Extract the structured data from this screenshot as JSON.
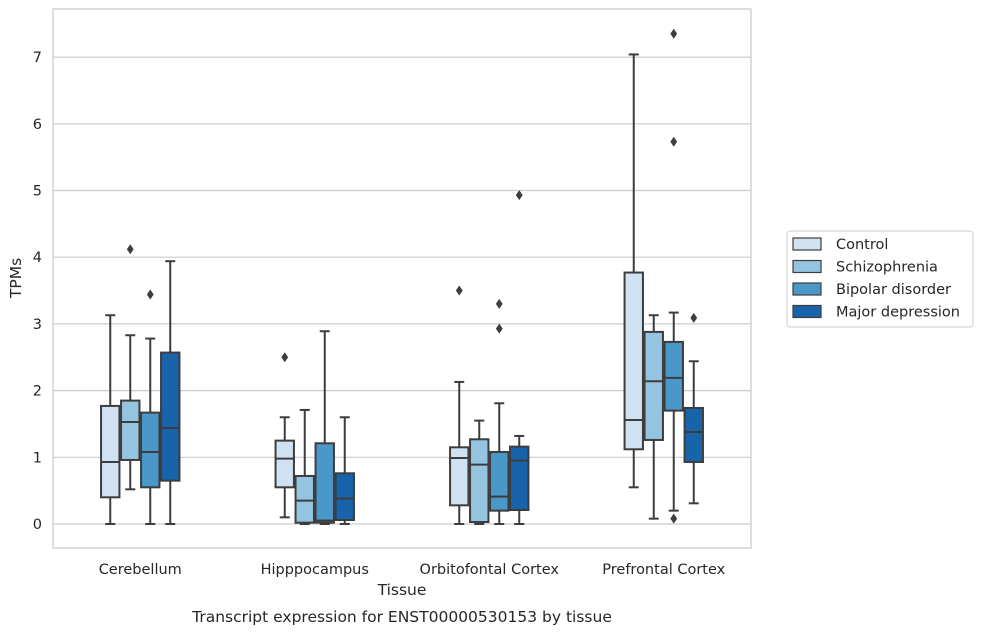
{
  "caption": "Transcript expression for ENST00000530153 by tissue",
  "chart_data": {
    "type": "boxplot",
    "title": "",
    "xlabel": "Tissue",
    "ylabel": "TPMs",
    "ylim": [
      -0.35,
      7.7
    ],
    "yticks": [
      0,
      1,
      2,
      3,
      4,
      5,
      6,
      7
    ],
    "grid": "horizontal",
    "legend_position": "right",
    "categories": [
      "Cerebellum",
      "Hipppocampus",
      "Orbitofontal Cortex",
      "Prefrontal Cortex"
    ],
    "series": [
      {
        "name": "Control",
        "color": "#d0e1f2",
        "boxes": [
          {
            "whislo": 0.0,
            "q1": 0.4,
            "med": 0.93,
            "q3": 1.77,
            "whishi": 3.13,
            "fliers": []
          },
          {
            "whislo": 0.1,
            "q1": 0.55,
            "med": 0.98,
            "q3": 1.25,
            "whishi": 1.6,
            "fliers": [
              2.5
            ]
          },
          {
            "whislo": 0.0,
            "q1": 0.28,
            "med": 0.99,
            "q3": 1.15,
            "whishi": 2.13,
            "fliers": [
              3.5
            ]
          },
          {
            "whislo": 0.55,
            "q1": 1.12,
            "med": 1.56,
            "q3": 3.77,
            "whishi": 7.04,
            "fliers": []
          }
        ]
      },
      {
        "name": "Schizophrenia",
        "color": "#94c4df",
        "boxes": [
          {
            "whislo": 0.52,
            "q1": 0.96,
            "med": 1.53,
            "q3": 1.85,
            "whishi": 2.83,
            "fliers": [
              4.12
            ]
          },
          {
            "whislo": 0.0,
            "q1": 0.02,
            "med": 0.35,
            "q3": 0.72,
            "whishi": 1.71,
            "fliers": []
          },
          {
            "whislo": 0.0,
            "q1": 0.03,
            "med": 0.89,
            "q3": 1.27,
            "whishi": 1.55,
            "fliers": []
          },
          {
            "whislo": 0.08,
            "q1": 1.26,
            "med": 2.14,
            "q3": 2.88,
            "whishi": 3.13,
            "fliers": []
          }
        ]
      },
      {
        "name": "Bipolar disorder",
        "color": "#4a98c9",
        "boxes": [
          {
            "whislo": 0.0,
            "q1": 0.55,
            "med": 1.08,
            "q3": 1.67,
            "whishi": 2.78,
            "fliers": [
              3.44
            ]
          },
          {
            "whislo": 0.0,
            "q1": 0.02,
            "med": 0.05,
            "q3": 1.21,
            "whishi": 2.89,
            "fliers": []
          },
          {
            "whislo": 0.0,
            "q1": 0.2,
            "med": 0.41,
            "q3": 1.08,
            "whishi": 1.81,
            "fliers": [
              3.3,
              2.93
            ]
          },
          {
            "whislo": 0.2,
            "q1": 1.7,
            "med": 2.19,
            "q3": 2.73,
            "whishi": 3.17,
            "fliers": [
              7.35,
              5.73,
              0.08
            ]
          }
        ]
      },
      {
        "name": "Major depression",
        "color": "#1764ab",
        "boxes": [
          {
            "whislo": 0.0,
            "q1": 0.65,
            "med": 1.44,
            "q3": 2.57,
            "whishi": 3.94,
            "fliers": []
          },
          {
            "whislo": 0.0,
            "q1": 0.06,
            "med": 0.38,
            "q3": 0.76,
            "whishi": 1.6,
            "fliers": []
          },
          {
            "whislo": 0.0,
            "q1": 0.21,
            "med": 0.95,
            "q3": 1.16,
            "whishi": 1.32,
            "fliers": [
              4.93
            ]
          },
          {
            "whislo": 0.31,
            "q1": 0.93,
            "med": 1.38,
            "q3": 1.74,
            "whishi": 2.44,
            "fliers": [
              3.09
            ]
          }
        ]
      }
    ]
  }
}
